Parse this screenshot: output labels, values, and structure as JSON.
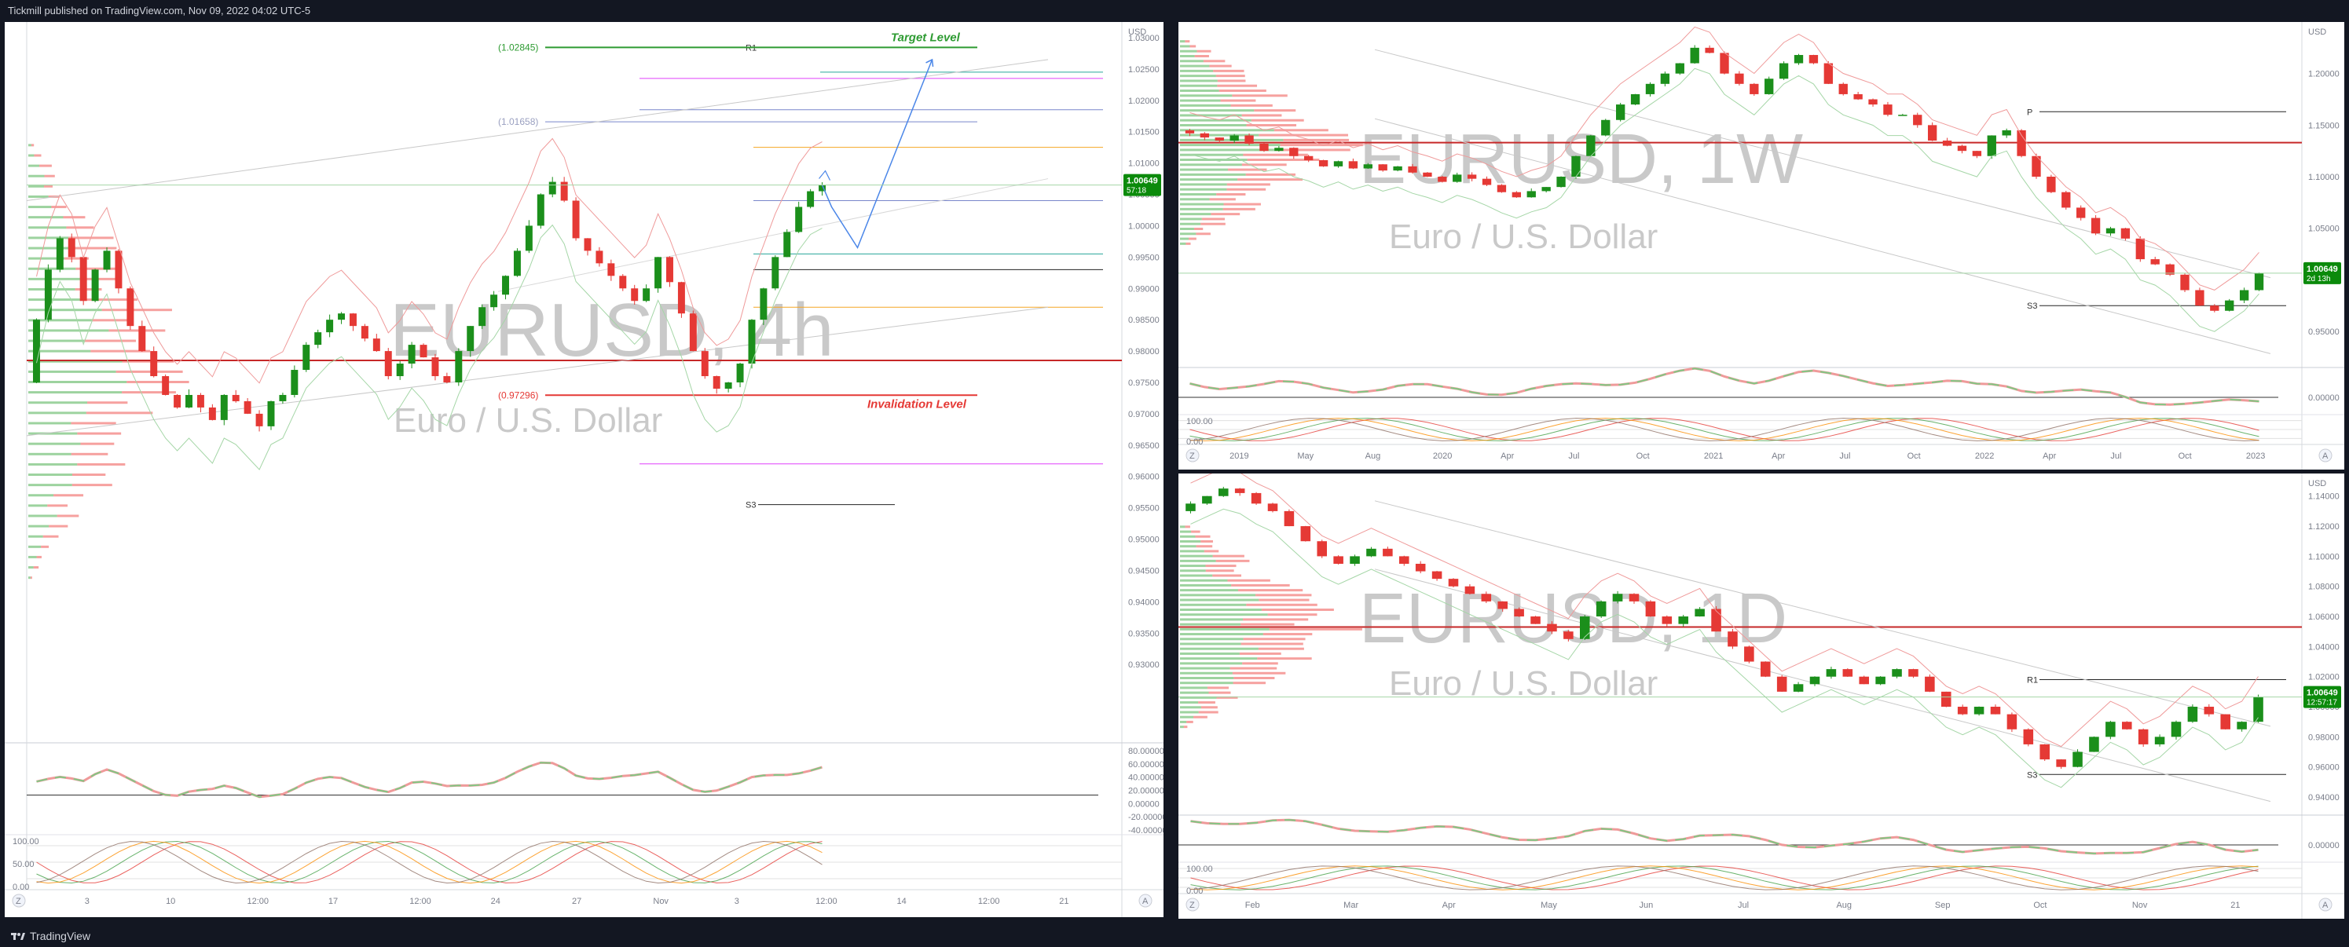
{
  "header": {
    "publisher_text": "Tickmill published on TradingView.com, Nov 09, 2022 04:02 UTC-5"
  },
  "footer": {
    "brand": "TradingView"
  },
  "colors": {
    "up": "#26a69a",
    "up_candle": "#1b8f1b",
    "down": "#e53935",
    "hline_red": "#c62828",
    "target": "#2e9b32",
    "invalid": "#e53935",
    "projection": "#4a86e8",
    "price_tag": "#0b8a0b",
    "pivot_magenta": "#e040fb",
    "pivot_orange": "#f5a623",
    "pivot_blue": "#7986cb"
  },
  "chart_data": [
    {
      "id": "4h",
      "type": "candlestick",
      "symbol": "EURUSD",
      "timeframe": "4h",
      "watermark_symbol": "EURUSD, 4h",
      "watermark_desc": "Euro / U.S. Dollar",
      "currency": "USD",
      "ylim": [
        0.9175,
        1.0325
      ],
      "y_ticks": [
        "1.03000",
        "1.02500",
        "1.02000",
        "1.01500",
        "1.01000",
        "1.00500",
        "1.00000",
        "0.99500",
        "0.99000",
        "0.98500",
        "0.98000",
        "0.97500",
        "0.97000",
        "0.96500",
        "0.96000",
        "0.95500",
        "0.95000",
        "0.94500",
        "0.94000",
        "0.93500",
        "0.93000"
      ],
      "y_ticks_values": [
        1.03,
        1.025,
        1.02,
        1.015,
        1.01,
        1.005,
        1.0,
        0.995,
        0.99,
        0.985,
        0.98,
        0.975,
        0.97,
        0.965,
        0.96,
        0.955,
        0.95,
        0.945,
        0.94,
        0.935,
        0.93
      ],
      "x_ticks": [
        "3",
        "10",
        "12:00",
        "17",
        "12:00",
        "24",
        "27",
        "Nov",
        "3",
        "12:00",
        "14",
        "12:00",
        "21"
      ],
      "last_price": "1.00649",
      "countdown": "57:18",
      "last_price_value": 1.00649,
      "candles_start": 0.975,
      "candles_path": [
        0.985,
        0.993,
        0.998,
        0.995,
        0.988,
        0.993,
        0.996,
        0.99,
        0.984,
        0.98,
        0.976,
        0.973,
        0.971,
        0.973,
        0.971,
        0.969,
        0.973,
        0.972,
        0.97,
        0.968,
        0.972,
        0.973,
        0.977,
        0.981,
        0.983,
        0.985,
        0.986,
        0.984,
        0.982,
        0.98,
        0.976,
        0.978,
        0.981,
        0.979,
        0.976,
        0.975,
        0.98,
        0.984,
        0.987,
        0.989,
        0.992,
        0.996,
        1.0,
        1.005,
        1.007,
        1.004,
        0.998,
        0.996,
        0.994,
        0.992,
        0.99,
        0.988,
        0.99,
        0.995,
        0.991,
        0.986,
        0.98,
        0.976,
        0.974,
        0.975,
        0.978,
        0.985,
        0.99,
        0.995,
        0.999,
        1.003,
        1.0055,
        1.0065
      ],
      "levels": [
        {
          "label": "R1",
          "value": 1.02845
        },
        {
          "label": "(1.02845)",
          "value": 1.02845
        },
        {
          "label": "(1.01658)",
          "value": 1.01658
        },
        {
          "label": "(0.97296)",
          "value": 0.97296
        },
        {
          "label": "S3",
          "value": 0.9555
        }
      ],
      "annotations": [
        {
          "label": "Target Level",
          "value": 1.02845
        },
        {
          "label": "Invalidation Level",
          "value": 0.97296
        }
      ],
      "horizontal_red_line": 0.9785,
      "projection_path": [
        1.0065,
        1.003,
        0.9965,
        1.0265
      ],
      "oscillator_1": {
        "ylim": [
          -20,
          80
        ],
        "ticks": [
          "80.00000",
          "60.00000",
          "40.00000",
          "20.00000",
          "0.00000",
          "-20.00000",
          "-40.00000"
        ],
        "level": 40
      },
      "oscillator_2": {
        "ticks": [
          "100.00",
          "50.00",
          "0.00"
        ]
      }
    },
    {
      "id": "1w",
      "type": "candlestick",
      "symbol": "EURUSD",
      "timeframe": "1W",
      "watermark_symbol": "EURUSD, 1W",
      "watermark_desc": "Euro / U.S. Dollar",
      "currency": "USD",
      "ylim": [
        0.915,
        1.25
      ],
      "y_ticks": [
        "1.20000",
        "1.15000",
        "1.10000",
        "1.05000",
        "1.00000",
        "0.95000"
      ],
      "y_ticks_values": [
        1.2,
        1.15,
        1.1,
        1.05,
        1.0,
        0.95
      ],
      "x_ticks": [
        "2019",
        "May",
        "Aug",
        "2020",
        "Apr",
        "Jul",
        "Oct",
        "2021",
        "Apr",
        "Jul",
        "Oct",
        "2022",
        "Apr",
        "Jul",
        "Oct",
        "2023"
      ],
      "last_price": "1.00649",
      "countdown": "2d 13h",
      "last_price_value": 1.00649,
      "candles_start": 1.145,
      "candles_path": [
        1.142,
        1.138,
        1.135,
        1.14,
        1.132,
        1.125,
        1.128,
        1.12,
        1.116,
        1.11,
        1.115,
        1.108,
        1.112,
        1.106,
        1.11,
        1.104,
        1.1,
        1.095,
        1.102,
        1.098,
        1.092,
        1.085,
        1.08,
        1.086,
        1.09,
        1.1,
        1.12,
        1.14,
        1.155,
        1.17,
        1.18,
        1.19,
        1.2,
        1.21,
        1.225,
        1.22,
        1.2,
        1.19,
        1.18,
        1.195,
        1.21,
        1.218,
        1.21,
        1.19,
        1.18,
        1.175,
        1.17,
        1.16,
        1.16,
        1.15,
        1.135,
        1.13,
        1.125,
        1.12,
        1.14,
        1.145,
        1.12,
        1.1,
        1.085,
        1.07,
        1.06,
        1.045,
        1.05,
        1.04,
        1.02,
        1.015,
        1.005,
        0.99,
        0.975,
        0.97,
        0.98,
        0.99,
        1.0065
      ],
      "levels": [
        {
          "label": "P",
          "value": 1.163
        },
        {
          "label": "S3",
          "value": 0.975
        }
      ],
      "horizontal_red_line": 1.133,
      "oscillator_1": {
        "ticks": [
          "0.00000"
        ]
      },
      "oscillator_2": {
        "ticks": [
          "100.00",
          "0.00"
        ]
      }
    },
    {
      "id": "1d",
      "type": "candlestick",
      "symbol": "EURUSD",
      "timeframe": "1D",
      "watermark_symbol": "EURUSD, 1D",
      "watermark_desc": "Euro / U.S. Dollar",
      "currency": "USD",
      "ylim": [
        0.928,
        1.155
      ],
      "y_ticks": [
        "1.14000",
        "1.12000",
        "1.10000",
        "1.08000",
        "1.06000",
        "1.04000",
        "1.02000",
        "1.00000",
        "0.98000",
        "0.96000",
        "0.94000"
      ],
      "y_ticks_values": [
        1.14,
        1.12,
        1.1,
        1.08,
        1.06,
        1.04,
        1.02,
        1.0,
        0.98,
        0.96,
        0.94
      ],
      "x_ticks": [
        "Feb",
        "Mar",
        "Apr",
        "May",
        "Jun",
        "Jul",
        "Aug",
        "Sep",
        "Oct",
        "Nov",
        "21"
      ],
      "last_price": "1.00649",
      "countdown": "12:57:17",
      "last_price_value": 1.00649,
      "candles_start": 1.13,
      "candles_path": [
        1.135,
        1.14,
        1.145,
        1.142,
        1.135,
        1.13,
        1.12,
        1.11,
        1.1,
        1.095,
        1.1,
        1.105,
        1.1,
        1.095,
        1.09,
        1.085,
        1.08,
        1.075,
        1.07,
        1.065,
        1.06,
        1.055,
        1.05,
        1.045,
        1.06,
        1.07,
        1.075,
        1.07,
        1.06,
        1.055,
        1.06,
        1.065,
        1.05,
        1.04,
        1.03,
        1.02,
        1.01,
        1.015,
        1.02,
        1.025,
        1.02,
        1.015,
        1.02,
        1.025,
        1.02,
        1.01,
        1.0,
        0.995,
        1.0,
        0.995,
        0.985,
        0.975,
        0.965,
        0.96,
        0.97,
        0.98,
        0.99,
        0.985,
        0.975,
        0.98,
        0.99,
        1.0,
        0.995,
        0.985,
        0.99,
        1.0065
      ],
      "levels": [
        {
          "label": "R1",
          "value": 1.018
        },
        {
          "label": "S3",
          "value": 0.955
        }
      ],
      "horizontal_red_line": 1.053,
      "oscillator_1": {
        "ticks": [
          "0.00000"
        ]
      },
      "oscillator_2": {
        "ticks": [
          "100.00",
          "0.00"
        ]
      }
    }
  ]
}
